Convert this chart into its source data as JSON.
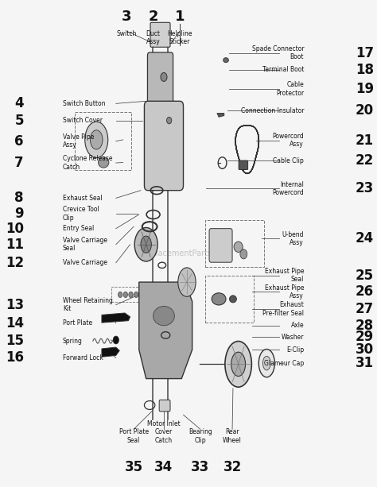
{
  "bg_color": "#f5f5f5",
  "figsize": [
    4.74,
    6.13
  ],
  "dpi": 100,
  "watermark": "eReplacementParts.com",
  "top_labels": [
    {
      "num": "3",
      "name": "Switch",
      "xn": 0.34,
      "yn": 0.956,
      "xl": 0.34,
      "yl": 0.942,
      "num_size": 13,
      "name_size": 5.5
    },
    {
      "num": "2",
      "name": "Duct\nAssy",
      "xn": 0.415,
      "yn": 0.956,
      "xl": 0.415,
      "yl": 0.942,
      "num_size": 13,
      "name_size": 5.5
    },
    {
      "num": "1",
      "name": "Helpline\nSticker",
      "xn": 0.49,
      "yn": 0.956,
      "xl": 0.49,
      "yl": 0.942,
      "num_size": 13,
      "name_size": 5.5
    }
  ],
  "left_labels": [
    {
      "num": "4",
      "name": "Switch Button",
      "xn": 0.05,
      "yn": 0.79,
      "xl": 0.16,
      "yl": 0.79,
      "num_size": 12,
      "name_size": 5.5
    },
    {
      "num": "5",
      "name": "Switch Cover",
      "xn": 0.05,
      "yn": 0.755,
      "xl": 0.16,
      "yl": 0.755,
      "num_size": 12,
      "name_size": 5.5
    },
    {
      "num": "6",
      "name": "Valve Pipe\nAssy",
      "xn": 0.05,
      "yn": 0.712,
      "xl": 0.16,
      "yl": 0.712,
      "num_size": 12,
      "name_size": 5.5
    },
    {
      "num": "7",
      "name": "Cyclone Release\nCatch",
      "xn": 0.05,
      "yn": 0.667,
      "xl": 0.16,
      "yl": 0.667,
      "num_size": 12,
      "name_size": 5.5
    },
    {
      "num": "8",
      "name": "Exhaust Seal",
      "xn": 0.05,
      "yn": 0.594,
      "xl": 0.16,
      "yl": 0.594,
      "num_size": 12,
      "name_size": 5.5
    },
    {
      "num": "9",
      "name": "Crevice Tool\nClip",
      "xn": 0.05,
      "yn": 0.562,
      "xl": 0.16,
      "yl": 0.562,
      "num_size": 12,
      "name_size": 5.5
    },
    {
      "num": "10",
      "name": "Entry Seal",
      "xn": 0.05,
      "yn": 0.531,
      "xl": 0.16,
      "yl": 0.531,
      "num_size": 12,
      "name_size": 5.5
    },
    {
      "num": "11",
      "name": "Valve Carriage\nSeal",
      "xn": 0.05,
      "yn": 0.498,
      "xl": 0.16,
      "yl": 0.498,
      "num_size": 12,
      "name_size": 5.5
    },
    {
      "num": "12",
      "name": "Valve Carriage",
      "xn": 0.05,
      "yn": 0.46,
      "xl": 0.16,
      "yl": 0.46,
      "num_size": 12,
      "name_size": 5.5
    },
    {
      "num": "13",
      "name": "Wheel Retaining\nKit",
      "xn": 0.05,
      "yn": 0.373,
      "xl": 0.16,
      "yl": 0.373,
      "num_size": 12,
      "name_size": 5.5
    },
    {
      "num": "14",
      "name": "Port Plate",
      "xn": 0.05,
      "yn": 0.335,
      "xl": 0.16,
      "yl": 0.335,
      "num_size": 12,
      "name_size": 5.5
    },
    {
      "num": "15",
      "name": "Spring",
      "xn": 0.05,
      "yn": 0.298,
      "xl": 0.16,
      "yl": 0.298,
      "num_size": 12,
      "name_size": 5.5
    },
    {
      "num": "16",
      "name": "Forward Lock",
      "xn": 0.05,
      "yn": 0.263,
      "xl": 0.16,
      "yl": 0.263,
      "num_size": 12,
      "name_size": 5.5
    }
  ],
  "right_labels": [
    {
      "num": "17",
      "name": "Spade Connector\nBoot",
      "xn": 0.985,
      "yn": 0.895,
      "xl": 0.84,
      "yl": 0.895,
      "num_size": 12,
      "name_size": 5.5
    },
    {
      "num": "18",
      "name": "Terminal Boot",
      "xn": 0.985,
      "yn": 0.86,
      "xl": 0.84,
      "yl": 0.86,
      "num_size": 12,
      "name_size": 5.5
    },
    {
      "num": "19",
      "name": "Cable\nProtector",
      "xn": 0.985,
      "yn": 0.82,
      "xl": 0.84,
      "yl": 0.82,
      "num_size": 12,
      "name_size": 5.5
    },
    {
      "num": "20",
      "name": "Connection Insulator",
      "xn": 0.985,
      "yn": 0.775,
      "xl": 0.84,
      "yl": 0.775,
      "num_size": 12,
      "name_size": 5.5
    },
    {
      "num": "21",
      "name": "Powercord\nAssy",
      "xn": 0.985,
      "yn": 0.714,
      "xl": 0.84,
      "yl": 0.714,
      "num_size": 12,
      "name_size": 5.5
    },
    {
      "num": "22",
      "name": "Cable Clip",
      "xn": 0.985,
      "yn": 0.672,
      "xl": 0.84,
      "yl": 0.672,
      "num_size": 12,
      "name_size": 5.5
    },
    {
      "num": "23",
      "name": "Internal\nPowercord",
      "xn": 0.985,
      "yn": 0.614,
      "xl": 0.84,
      "yl": 0.614,
      "num_size": 12,
      "name_size": 5.5
    },
    {
      "num": "24",
      "name": "U-bend\nAssy",
      "xn": 0.985,
      "yn": 0.51,
      "xl": 0.84,
      "yl": 0.51,
      "num_size": 12,
      "name_size": 5.5
    },
    {
      "num": "25",
      "name": "Exhaust Pipe\nSeal",
      "xn": 0.985,
      "yn": 0.434,
      "xl": 0.84,
      "yl": 0.434,
      "num_size": 12,
      "name_size": 5.5
    },
    {
      "num": "26",
      "name": "Exhaust Pipe\nAssy",
      "xn": 0.985,
      "yn": 0.4,
      "xl": 0.84,
      "yl": 0.4,
      "num_size": 12,
      "name_size": 5.5
    },
    {
      "num": "27",
      "name": "Exhaust\nPre-filter Seal",
      "xn": 0.985,
      "yn": 0.364,
      "xl": 0.84,
      "yl": 0.364,
      "num_size": 12,
      "name_size": 5.5
    },
    {
      "num": "28",
      "name": "Axle",
      "xn": 0.985,
      "yn": 0.33,
      "xl": 0.84,
      "yl": 0.33,
      "num_size": 12,
      "name_size": 5.5
    },
    {
      "num": "29",
      "name": "Washer",
      "xn": 0.985,
      "yn": 0.306,
      "xl": 0.84,
      "yl": 0.306,
      "num_size": 12,
      "name_size": 5.5
    },
    {
      "num": "30",
      "name": "E-Clip",
      "xn": 0.985,
      "yn": 0.28,
      "xl": 0.84,
      "yl": 0.28,
      "num_size": 12,
      "name_size": 5.5
    },
    {
      "num": "31",
      "name": "Glamour Cap",
      "xn": 0.985,
      "yn": 0.252,
      "xl": 0.84,
      "yl": 0.252,
      "num_size": 12,
      "name_size": 5.5
    }
  ],
  "bottom_labels": [
    {
      "num": "35",
      "name": "Port Plate\nSeal",
      "xn": 0.36,
      "yn": 0.052,
      "xl": 0.36,
      "yl": 0.085,
      "num_size": 12,
      "name_size": 5.5
    },
    {
      "num": "34",
      "name": "Motor Inlet\nCover\nCatch",
      "xn": 0.445,
      "yn": 0.052,
      "xl": 0.445,
      "yl": 0.085,
      "num_size": 12,
      "name_size": 5.5
    },
    {
      "num": "33",
      "name": "Bearing\nClip",
      "xn": 0.548,
      "yn": 0.052,
      "xl": 0.548,
      "yl": 0.085,
      "num_size": 12,
      "name_size": 5.5
    },
    {
      "num": "32",
      "name": "Rear\nWheel",
      "xn": 0.638,
      "yn": 0.052,
      "xl": 0.638,
      "yl": 0.085,
      "num_size": 12,
      "name_size": 5.5
    }
  ]
}
